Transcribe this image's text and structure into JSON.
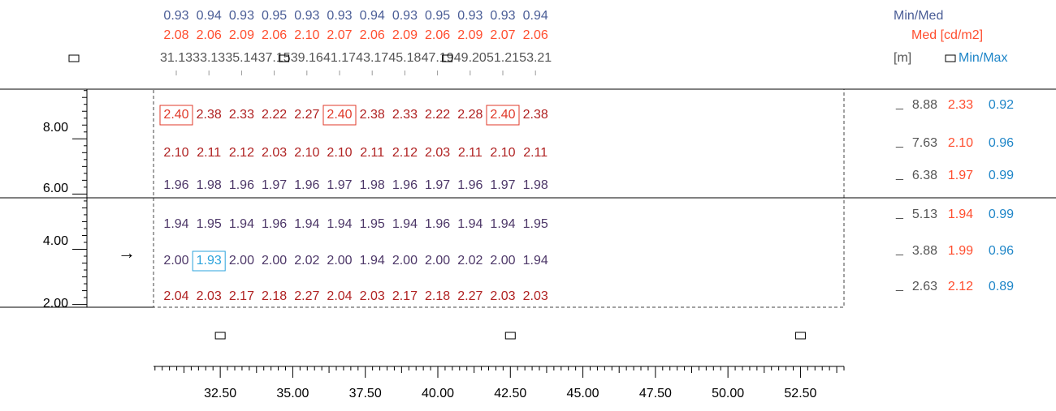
{
  "colors": {
    "uniformity_min_med": "#4a5d96",
    "median": "#ff4d2e",
    "min_max": "#1f86c8",
    "value_high": "#b02222",
    "value_mid": "#4d3768",
    "highlight_max": "#e03a2a",
    "highlight_min": "#2ba3dc",
    "axis": "#000000",
    "text_gray": "#555555"
  },
  "header": {
    "min_med_label": "Min/Med",
    "med_label": "Med [cd/m2]",
    "unit_label": "[m]",
    "min_max_label": "Min/Max",
    "column_min_med": [
      "0.93",
      "0.94",
      "0.93",
      "0.95",
      "0.93",
      "0.93",
      "0.94",
      "0.93",
      "0.95",
      "0.93",
      "0.93",
      "0.94"
    ],
    "column_med": [
      "2.08",
      "2.06",
      "2.09",
      "2.06",
      "2.10",
      "2.07",
      "2.06",
      "2.09",
      "2.06",
      "2.09",
      "2.07",
      "2.06"
    ],
    "column_positions": [
      "31.13",
      "33.13",
      "35.14",
      "37.15",
      "39.16",
      "41.17",
      "43.17",
      "45.18",
      "47.19",
      "49.20",
      "51.21",
      "53.21"
    ]
  },
  "left_axis": {
    "labels": [
      "8.00",
      "6.00",
      "4.00",
      "2.00"
    ]
  },
  "direction_arrow": "→",
  "right_panel": {
    "rows": [
      {
        "position": "8.88",
        "median": "2.33",
        "min_max": "0.92"
      },
      {
        "position": "7.63",
        "median": "2.10",
        "min_max": "0.96"
      },
      {
        "position": "6.38",
        "median": "1.97",
        "min_max": "0.99"
      },
      {
        "position": "5.13",
        "median": "1.94",
        "min_max": "0.99"
      },
      {
        "position": "3.88",
        "median": "1.99",
        "min_max": "0.96"
      },
      {
        "position": "2.63",
        "median": "2.12",
        "min_max": "0.89"
      }
    ]
  },
  "bottom_axis": {
    "labels": [
      "32.50",
      "35.00",
      "37.50",
      "40.00",
      "42.50",
      "45.00",
      "47.50",
      "50.00",
      "52.50"
    ]
  },
  "chart_data": {
    "type": "heatmap",
    "title": "",
    "value_unit": "cd/m2",
    "x_unit": "m",
    "x": [
      31.13,
      33.13,
      35.14,
      37.15,
      39.16,
      41.17,
      43.17,
      45.18,
      47.19,
      49.2,
      51.21,
      53.21
    ],
    "y": [
      8.88,
      7.63,
      6.38,
      5.13,
      3.88,
      2.63
    ],
    "values": [
      [
        "2.40",
        "2.38",
        "2.33",
        "2.22",
        "2.27",
        "2.40",
        "2.38",
        "2.33",
        "2.22",
        "2.28",
        "2.40",
        "2.38"
      ],
      [
        "2.10",
        "2.11",
        "2.12",
        "2.03",
        "2.10",
        "2.10",
        "2.11",
        "2.12",
        "2.03",
        "2.11",
        "2.10",
        "2.11"
      ],
      [
        "1.96",
        "1.98",
        "1.96",
        "1.97",
        "1.96",
        "1.97",
        "1.98",
        "1.96",
        "1.97",
        "1.96",
        "1.97",
        "1.98"
      ],
      [
        "1.94",
        "1.95",
        "1.94",
        "1.96",
        "1.94",
        "1.94",
        "1.95",
        "1.94",
        "1.96",
        "1.94",
        "1.94",
        "1.95"
      ],
      [
        "2.00",
        "1.93",
        "2.00",
        "2.00",
        "2.02",
        "2.00",
        "1.94",
        "2.00",
        "2.00",
        "2.02",
        "2.00",
        "1.94"
      ],
      [
        "2.04",
        "2.03",
        "2.17",
        "2.18",
        "2.27",
        "2.04",
        "2.03",
        "2.17",
        "2.18",
        "2.27",
        "2.03",
        "2.03"
      ]
    ],
    "max_cells": [
      [
        0,
        0
      ],
      [
        0,
        5
      ],
      [
        0,
        10
      ]
    ],
    "min_cells": [
      [
        4,
        1
      ]
    ],
    "bottom_axis_range": [
      30.2,
      54.0
    ],
    "bottom_axis_ticks": [
      32.5,
      35.0,
      37.5,
      40.0,
      42.5,
      45.0,
      47.5,
      50.0,
      52.5
    ],
    "left_axis_range": [
      1.9,
      9.8
    ],
    "left_axis_ticks": [
      8.0,
      6.0,
      4.0,
      2.0
    ],
    "markers_top_x": [
      37.15,
      47.19
    ],
    "markers_bottom_x": [
      32.5,
      42.5,
      52.5
    ],
    "grid": false
  }
}
